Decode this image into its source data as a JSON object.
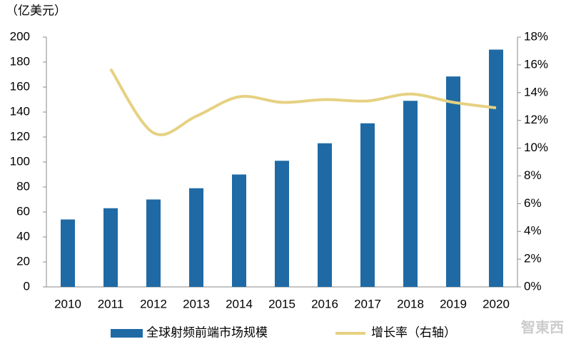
{
  "chart_data": {
    "type": "bar-line",
    "unit_label": "（亿美元）",
    "categories": [
      "2010",
      "2011",
      "2012",
      "2013",
      "2014",
      "2015",
      "2016",
      "2017",
      "2018",
      "2019",
      "2020"
    ],
    "series": [
      {
        "name": "全球射频前端市场规模",
        "type": "bar",
        "color": "#1f6aa5",
        "values": [
          54,
          63,
          70,
          79,
          90,
          101,
          115,
          131,
          149,
          168.5,
          190
        ]
      },
      {
        "name": "增长率（右轴）",
        "type": "line",
        "axis": "y2",
        "color": "#e6d182",
        "values": [
          null,
          15.7,
          11.1,
          12.3,
          13.7,
          13.3,
          13.5,
          13.4,
          13.9,
          13.3,
          12.9
        ]
      }
    ],
    "ylim": [
      0,
      200
    ],
    "yticks": [
      0,
      20,
      40,
      60,
      80,
      100,
      120,
      140,
      160,
      180,
      200
    ],
    "y2lim": [
      0,
      18
    ],
    "y2ticks": [
      {
        "value": 0,
        "label": "0%"
      },
      {
        "value": 2,
        "label": "2%"
      },
      {
        "value": 4,
        "label": "4%"
      },
      {
        "value": 6,
        "label": "6%"
      },
      {
        "value": 8,
        "label": "8%"
      },
      {
        "value": 10,
        "label": "10%"
      },
      {
        "value": 12,
        "label": "12%"
      },
      {
        "value": 14,
        "label": "14%"
      },
      {
        "value": 16,
        "label": "16%"
      },
      {
        "value": 18,
        "label": "18%"
      }
    ],
    "watermark": "智東西"
  }
}
